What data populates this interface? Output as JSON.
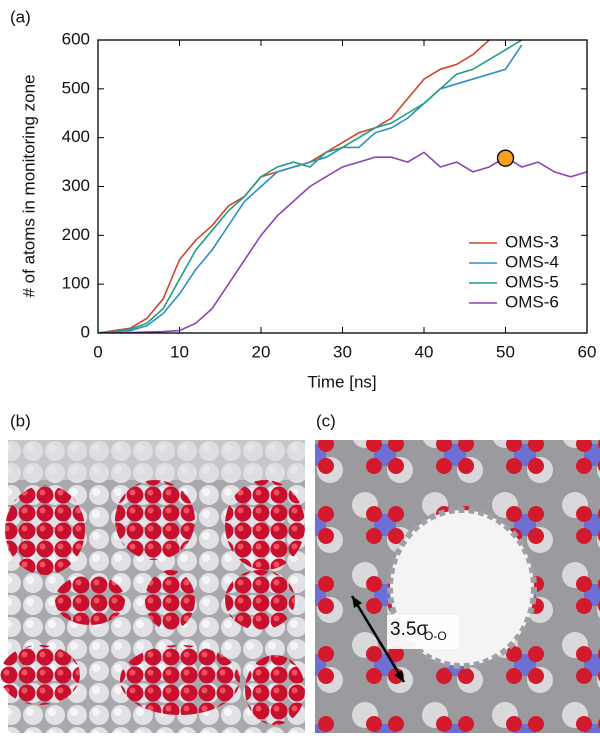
{
  "chart_data": {
    "type": "line",
    "panel_label": "(a)",
    "x_label": "Time [ns]",
    "y_label": "# of atoms in monitoring zone",
    "x": [
      0,
      2,
      4,
      6,
      8,
      10,
      12,
      14,
      16,
      18,
      20,
      22,
      24,
      26,
      28,
      30,
      32,
      34,
      36,
      38,
      40,
      42,
      44,
      46,
      48,
      50,
      52,
      54,
      56,
      58,
      60
    ],
    "series": [
      {
        "name": "OMS-3",
        "color": "#d2452b",
        "values": [
          0,
          5,
          10,
          30,
          70,
          150,
          190,
          220,
          260,
          280,
          320,
          330,
          340,
          350,
          370,
          390,
          410,
          420,
          440,
          480,
          520,
          540,
          550,
          570,
          600,
          null,
          null,
          null,
          null,
          null,
          null
        ]
      },
      {
        "name": "OMS-4",
        "color": "#2f8fc4",
        "values": [
          0,
          3,
          5,
          15,
          40,
          80,
          130,
          170,
          220,
          270,
          300,
          330,
          340,
          350,
          360,
          380,
          380,
          410,
          420,
          440,
          470,
          500,
          510,
          520,
          530,
          540,
          590,
          null,
          null,
          null,
          null
        ]
      },
      {
        "name": "OMS-5",
        "color": "#1fa083",
        "values": [
          0,
          3,
          8,
          20,
          50,
          110,
          170,
          210,
          250,
          280,
          320,
          340,
          350,
          340,
          370,
          380,
          400,
          420,
          430,
          450,
          470,
          500,
          530,
          540,
          560,
          580,
          600,
          null,
          null,
          null,
          null
        ]
      },
      {
        "name": "OMS-6",
        "color": "#8e44b3",
        "values": [
          0,
          0,
          1,
          2,
          3,
          5,
          20,
          50,
          100,
          150,
          200,
          240,
          270,
          300,
          320,
          340,
          350,
          360,
          360,
          350,
          370,
          340,
          350,
          330,
          340,
          360,
          340,
          350,
          330,
          320,
          330
        ]
      }
    ],
    "marker": {
      "x": 50,
      "y": 358,
      "color": "#f5a020"
    },
    "xlim": [
      0,
      60
    ],
    "xticks": [
      0,
      10,
      20,
      30,
      40,
      50,
      60
    ],
    "ylim": [
      0,
      600
    ],
    "yticks": [
      0,
      100,
      200,
      300,
      400,
      500,
      600
    ],
    "legend": "lower right"
  },
  "panels": [
    {
      "label": "(b)"
    },
    {
      "label": "(c)",
      "annotation": "3.5σ",
      "annotation_sub": "O-O"
    }
  ]
}
